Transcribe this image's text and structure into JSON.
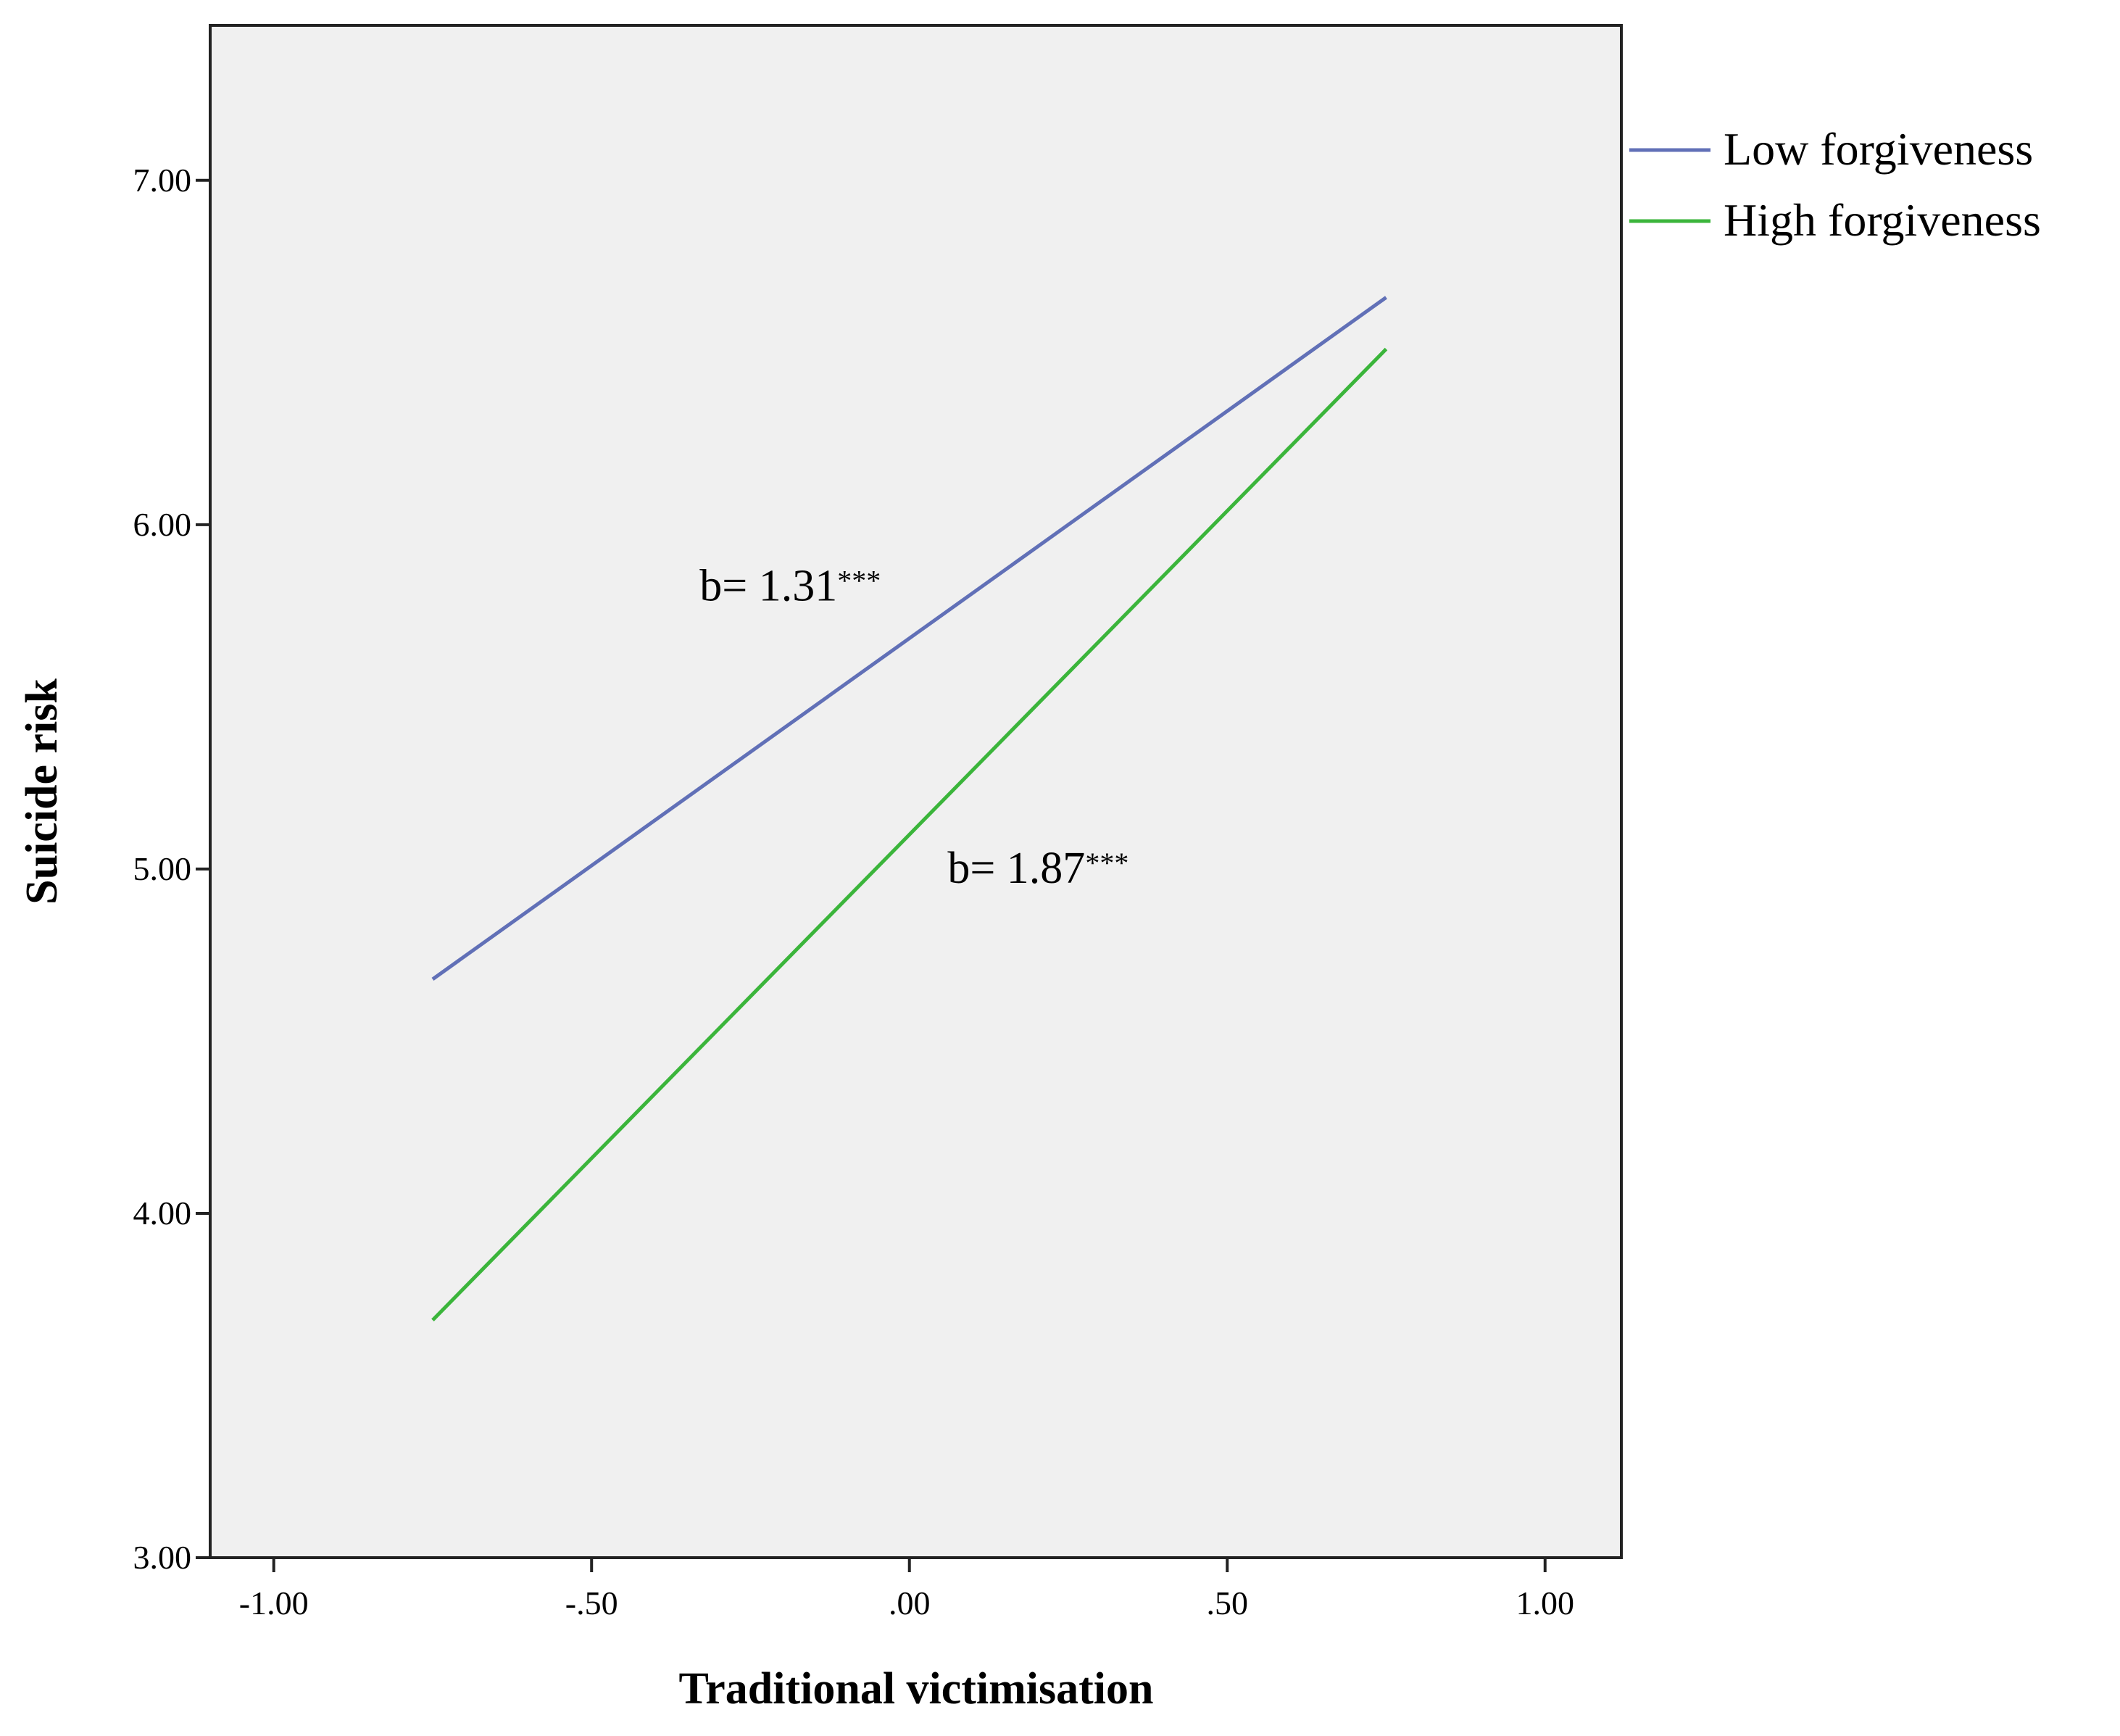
{
  "chart_data": {
    "type": "line",
    "xlabel": "Traditional victimisation",
    "ylabel": "Suicide risk",
    "xlim": [
      -1.1,
      1.12
    ],
    "ylim": [
      3.0,
      7.45
    ],
    "x_ticks": [
      -1.0,
      -0.5,
      0.0,
      0.5,
      1.0
    ],
    "x_tick_labels": [
      "-1.00",
      "-.50",
      ".00",
      ".50",
      "1.00"
    ],
    "y_ticks": [
      3.0,
      4.0,
      5.0,
      6.0,
      7.0
    ],
    "y_tick_labels": [
      "3.00",
      "4.00",
      "5.00",
      "6.00",
      "7.00"
    ],
    "grid": false,
    "legend_position": "right-top, outside plot",
    "background_color": "#f0f0f0",
    "series": [
      {
        "name": "Low forgiveness",
        "color": "#6170b7",
        "x": [
          -0.75,
          0.75
        ],
        "y": [
          4.68,
          6.66
        ]
      },
      {
        "name": "High forgiveness",
        "color": "#3bb53b",
        "x": [
          -0.75,
          0.75
        ],
        "y": [
          3.69,
          6.51
        ]
      }
    ],
    "annotations": [
      {
        "text": "b= 1.31",
        "suffix": "***",
        "x": -0.33,
        "y": 5.78
      },
      {
        "text": "b= 1.87",
        "suffix": "***",
        "x": 0.06,
        "y": 4.96
      }
    ]
  }
}
